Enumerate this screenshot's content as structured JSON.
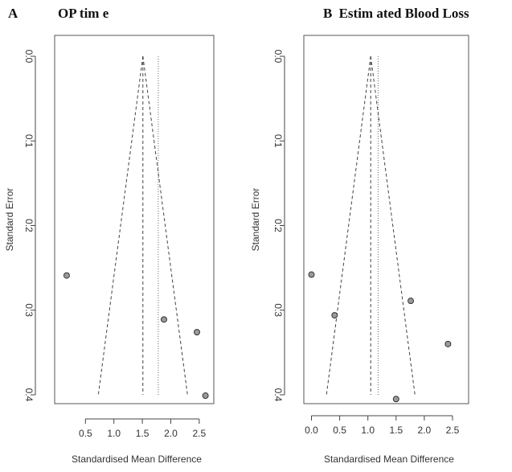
{
  "panels": [
    {
      "letter": "A",
      "title": "OP tim e"
    },
    {
      "letter": "B",
      "title": "Estim ated Blood Loss"
    }
  ],
  "chart_data": [
    {
      "type": "scatter",
      "subtype": "funnel",
      "title": "OP tim e",
      "xlabel": "Standardised Mean Difference",
      "ylabel": "Standard Error",
      "xlim": [
        0.1,
        2.7
      ],
      "ylim": [
        0.4,
        0.0
      ],
      "y_reversed": true,
      "xticks": [
        "0.5",
        "1.0",
        "1.5",
        "2.0",
        "2.5"
      ],
      "xtick_values": [
        0.5,
        1.0,
        1.5,
        2.0,
        2.5
      ],
      "yticks": [
        "0.0",
        "0.1",
        "0.2",
        "0.3",
        "0.4"
      ],
      "ytick_values": [
        0.0,
        0.1,
        0.2,
        0.3,
        0.4
      ],
      "summary_effect": 1.51,
      "dotted_line": 1.78,
      "funnel_base_se": 0.4,
      "grid": false,
      "points": [
        {
          "x": 0.17,
          "y": 0.259
        },
        {
          "x": 1.88,
          "y": 0.311
        },
        {
          "x": 2.46,
          "y": 0.326
        },
        {
          "x": 2.61,
          "y": 0.401
        }
      ],
      "colors": {
        "point_fill": "#9a9a9a",
        "point_stroke": "#333333",
        "line": "#444444"
      }
    },
    {
      "type": "scatter",
      "subtype": "funnel",
      "title": "Estim ated Blood Loss",
      "xlabel": "Standardised Mean Difference",
      "ylabel": "Standard Error",
      "xlim": [
        -0.05,
        2.6
      ],
      "ylim": [
        0.4,
        0.0
      ],
      "y_reversed": true,
      "xticks": [
        "0.0",
        "0.5",
        "1.0",
        "1.5",
        "2.0",
        "2.5"
      ],
      "xtick_values": [
        0.0,
        0.5,
        1.0,
        1.5,
        2.0,
        2.5
      ],
      "yticks": [
        "0.0",
        "0.1",
        "0.2",
        "0.3",
        "0.4"
      ],
      "ytick_values": [
        0.0,
        0.1,
        0.2,
        0.3,
        0.4
      ],
      "summary_effect": 1.05,
      "dotted_line": 1.18,
      "funnel_base_se": 0.4,
      "grid": false,
      "points": [
        {
          "x": 0.0,
          "y": 0.258
        },
        {
          "x": 0.41,
          "y": 0.306
        },
        {
          "x": 1.76,
          "y": 0.289
        },
        {
          "x": 2.42,
          "y": 0.34
        },
        {
          "x": 1.5,
          "y": 0.405
        }
      ],
      "colors": {
        "point_fill": "#9a9a9a",
        "point_stroke": "#333333",
        "line": "#444444"
      }
    }
  ]
}
